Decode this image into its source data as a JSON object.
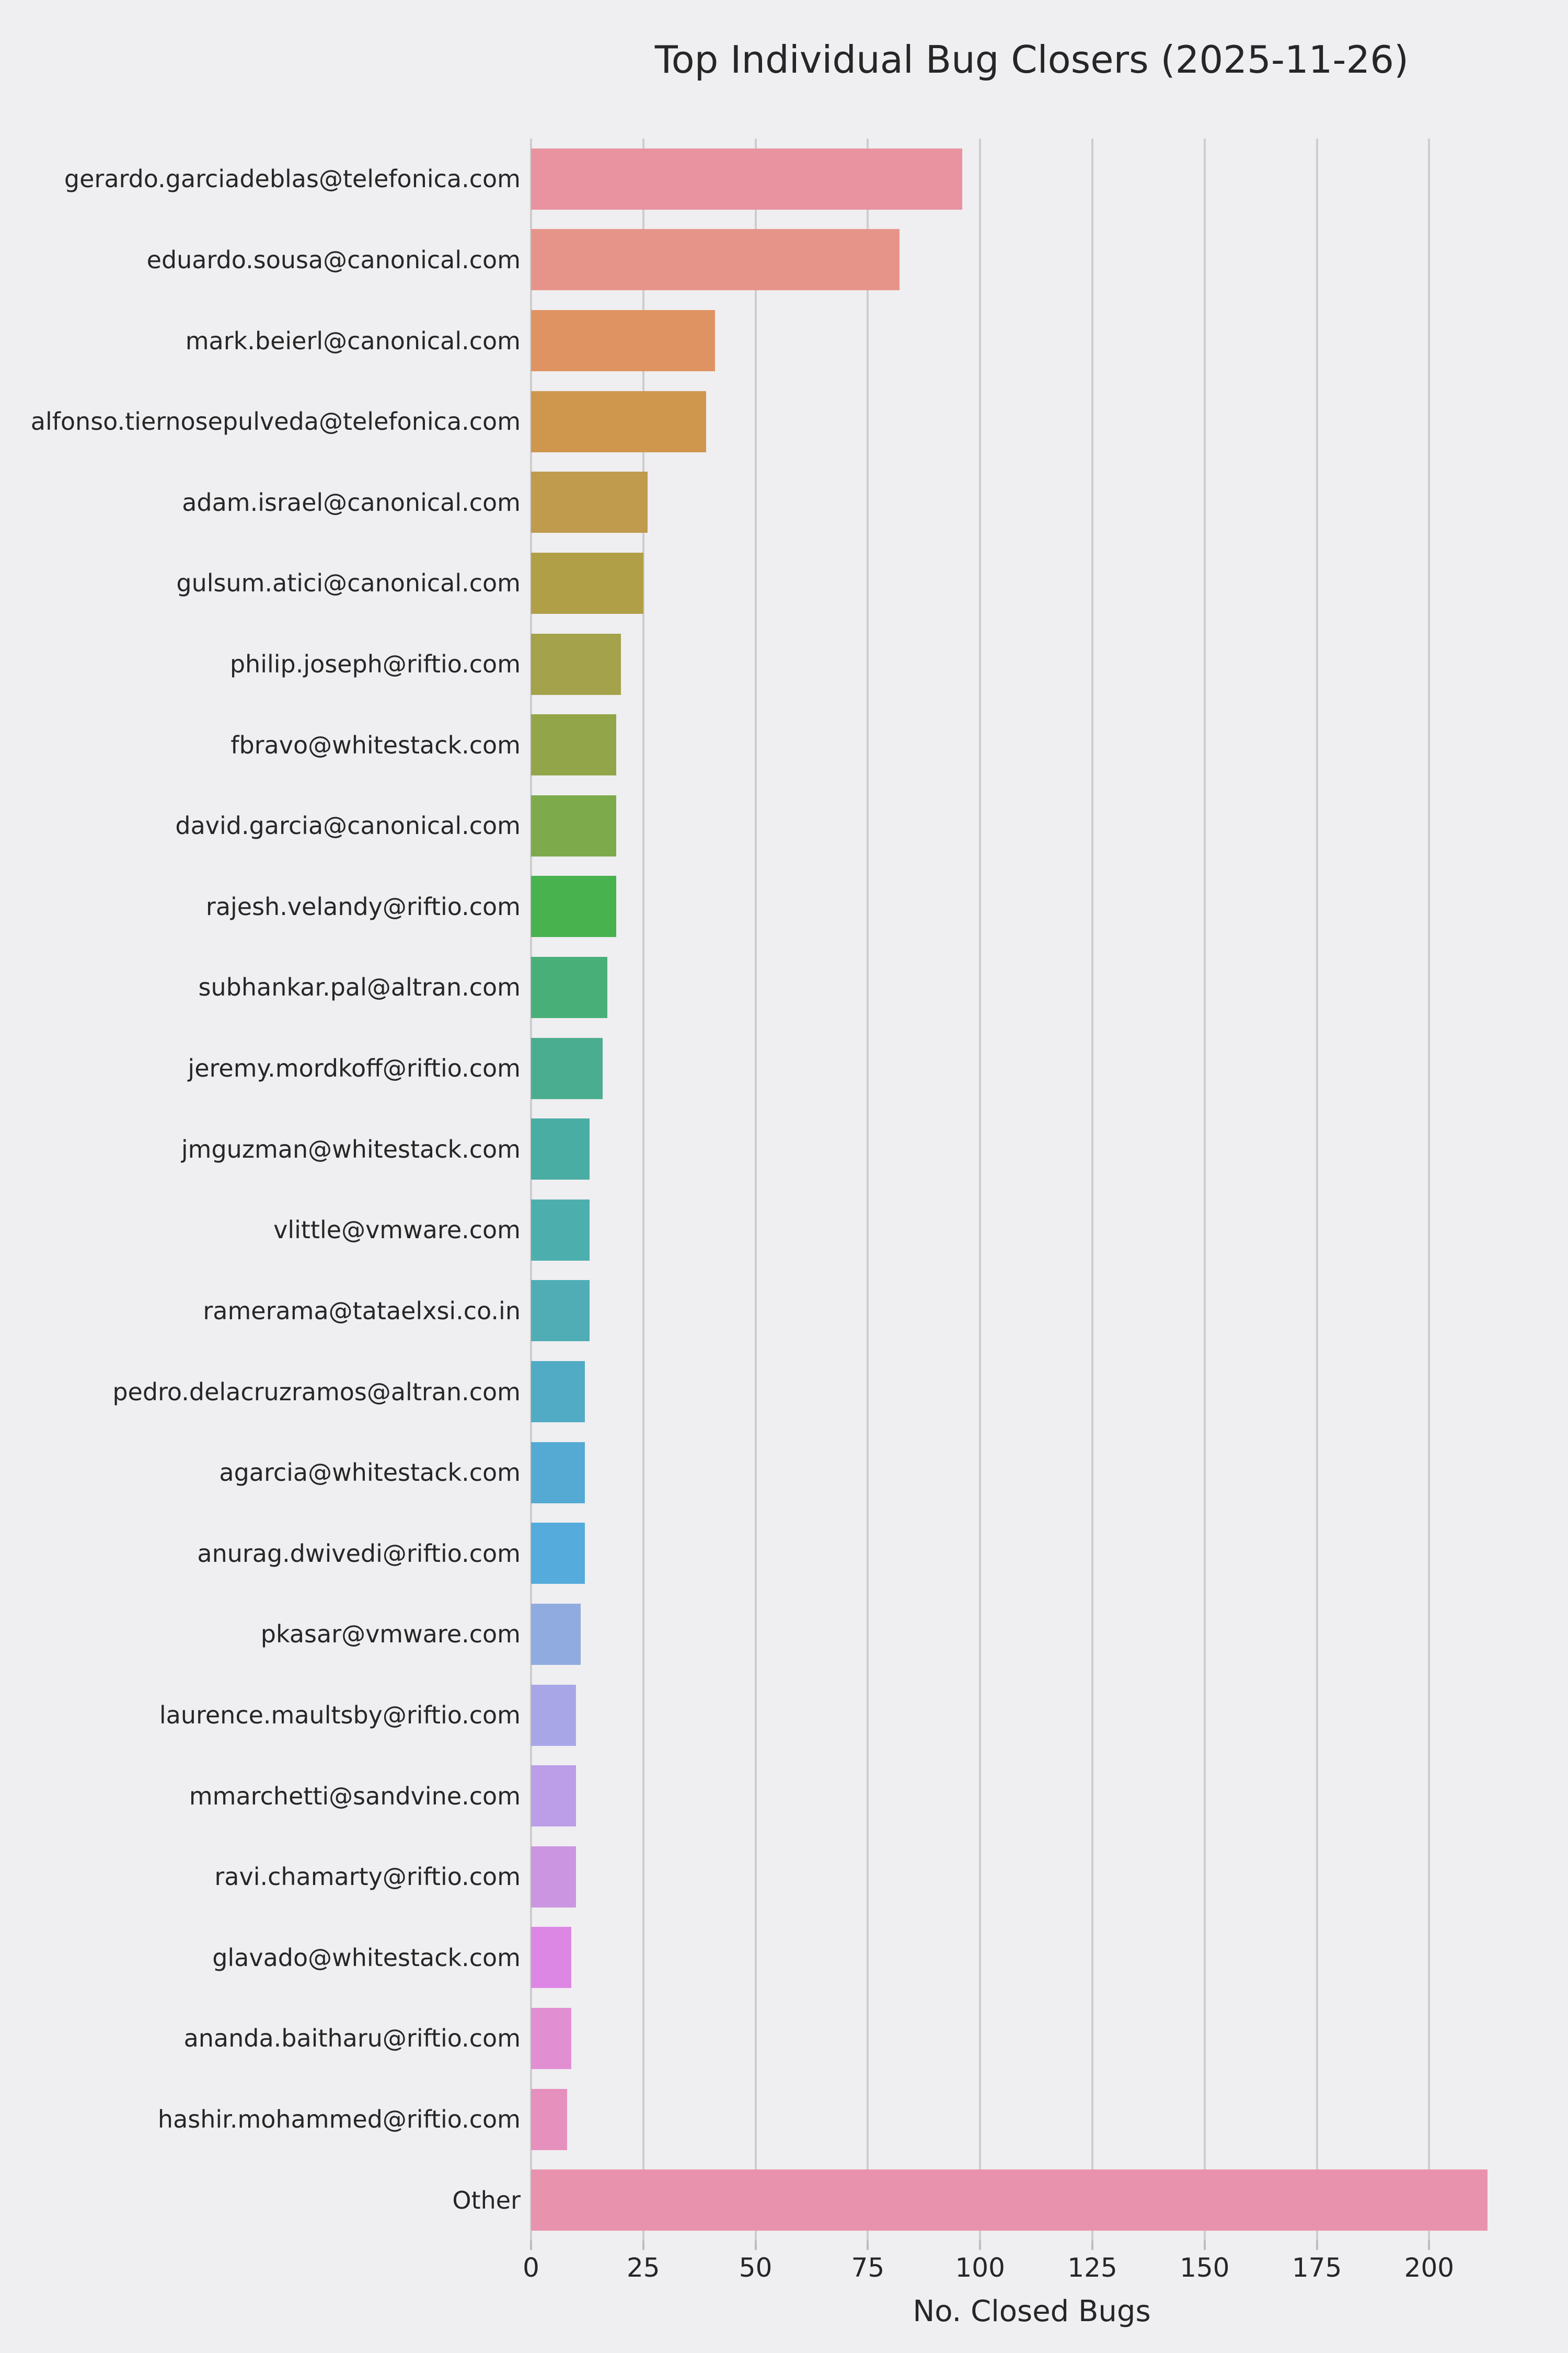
{
  "chart_data": {
    "type": "bar",
    "orientation": "horizontal",
    "title": "Top Individual Bug Closers (2025-11-26)",
    "xlabel": "No. Closed Bugs",
    "ylabel": "",
    "xlim": [
      0,
      223
    ],
    "xticks": [
      0,
      25,
      50,
      75,
      100,
      125,
      150,
      175,
      200
    ],
    "grid": true,
    "legend": false,
    "background_color": "#efeef0",
    "gridline_color": "#cdcdcd",
    "text_color": "#262626",
    "categories": [
      "gerardo.garciadeblas@telefonica.com",
      "eduardo.sousa@canonical.com",
      "mark.beierl@canonical.com",
      "alfonso.tiernosepulveda@telefonica.com",
      "adam.israel@canonical.com",
      "gulsum.atici@canonical.com",
      "philip.joseph@riftio.com",
      "fbravo@whitestack.com",
      "david.garcia@canonical.com",
      "rajesh.velandy@riftio.com",
      "subhankar.pal@altran.com",
      "jeremy.mordkoff@riftio.com",
      "jmguzman@whitestack.com",
      "vlittle@vmware.com",
      "ramerama@tataelxsi.co.in",
      "pedro.delacruzramos@altran.com",
      "agarcia@whitestack.com",
      "anurag.dwivedi@riftio.com",
      "pkasar@vmware.com",
      "laurence.maultsby@riftio.com",
      "mmarchetti@sandvine.com",
      "ravi.chamarty@riftio.com",
      "glavado@whitestack.com",
      "ananda.baitharu@riftio.com",
      "hashir.mohammed@riftio.com",
      "Other"
    ],
    "values": [
      96,
      82,
      41,
      39,
      26,
      25,
      20,
      19,
      19,
      19,
      17,
      16,
      13,
      13,
      13,
      12,
      12,
      12,
      11,
      10,
      10,
      10,
      9,
      9,
      8,
      213
    ],
    "bar_colors": [
      "#e8939f",
      "#e69489",
      "#e09362",
      "#cf964e",
      "#c09b4d",
      "#b19f47",
      "#a4a24a",
      "#93a549",
      "#7daa4b",
      "#47b24e",
      "#49af78",
      "#4bad90",
      "#4aada4",
      "#4cafae",
      "#50adb6",
      "#52abc4",
      "#54aad2",
      "#55abdc",
      "#8fabe0",
      "#a9a6e8",
      "#bb9de8",
      "#cc95e2",
      "#dd87e5",
      "#e28ed2",
      "#e690bd",
      "#e992ae"
    ]
  }
}
